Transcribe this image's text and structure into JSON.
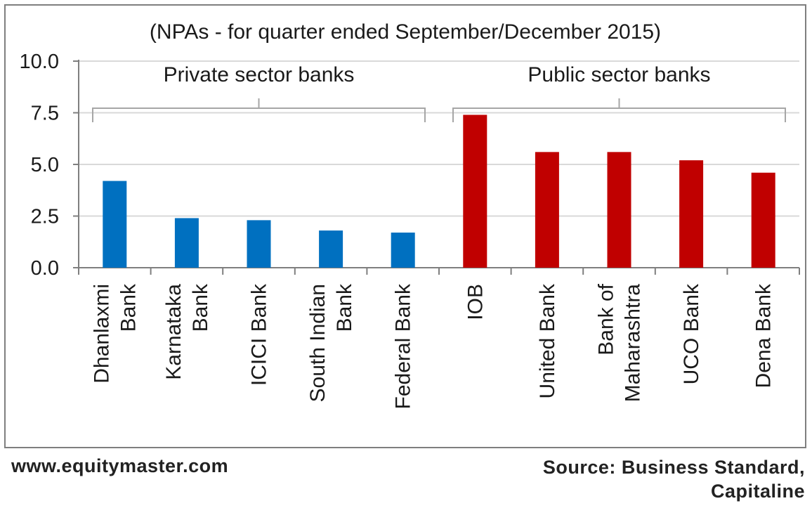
{
  "chart_data": {
    "type": "bar",
    "title": "(NPAs - for quarter ended September/December 2015)",
    "xlabel": "",
    "ylabel": "",
    "ylim": [
      0,
      10
    ],
    "yticks": [
      "0.0",
      "2.5",
      "5.0",
      "7.5",
      "10.0"
    ],
    "grid": true,
    "groups": [
      {
        "label": "Private sector banks",
        "color": "#0070c0",
        "categories": [
          [
            "Dhanlaxmi",
            "Bank"
          ],
          [
            "Karnataka",
            "Bank"
          ],
          [
            "ICICI Bank"
          ],
          [
            "South Indian",
            "Bank"
          ],
          [
            "Federal Bank"
          ]
        ],
        "values": [
          4.2,
          2.4,
          2.3,
          1.8,
          1.7
        ]
      },
      {
        "label": "Public sector banks",
        "color": "#c00000",
        "categories": [
          [
            "IOB"
          ],
          [
            "United Bank"
          ],
          [
            "Bank of",
            "Maharashtra"
          ],
          [
            "UCO Bank"
          ],
          [
            "Dena Bank"
          ]
        ],
        "values": [
          7.4,
          5.6,
          5.6,
          5.2,
          4.6
        ]
      }
    ]
  },
  "footer": {
    "website": "www.equitymaster.com",
    "source_line1": "Source: Business Standard,",
    "source_line2": "Capitaline"
  }
}
